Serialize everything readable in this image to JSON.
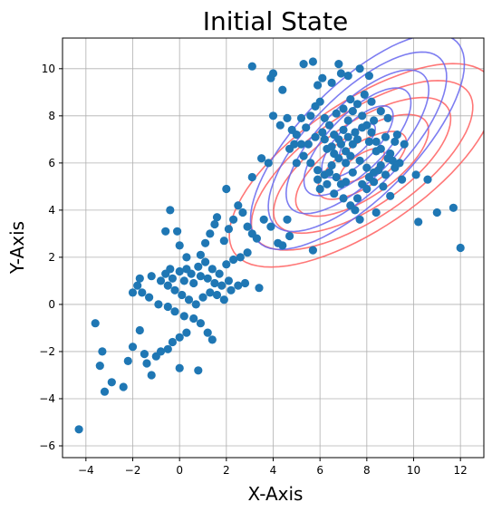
{
  "chart_data": {
    "type": "scatter",
    "title": "Initial State",
    "xlabel": "X-Axis",
    "ylabel": "Y-Axis",
    "xlim": [
      -5.0,
      13.0
    ],
    "ylim": [
      -6.5,
      11.3
    ],
    "xticks": [
      -4,
      -2,
      0,
      2,
      4,
      6,
      8,
      10,
      12
    ],
    "yticks": [
      -6,
      -4,
      -2,
      0,
      2,
      4,
      6,
      8,
      10
    ],
    "grid": true,
    "point_color": "#1f77b4",
    "scatter_points": [
      [
        -4.3,
        -5.3
      ],
      [
        -3.2,
        -3.7
      ],
      [
        -3.4,
        -2.6
      ],
      [
        -2.9,
        -3.3
      ],
      [
        -2.4,
        -3.5
      ],
      [
        -3.6,
        -0.8
      ],
      [
        -3.3,
        -2.0
      ],
      [
        -2.2,
        -2.4
      ],
      [
        -2.0,
        -1.8
      ],
      [
        -1.7,
        -1.1
      ],
      [
        -1.5,
        -2.1
      ],
      [
        -1.2,
        -3.0
      ],
      [
        -1.4,
        -2.5
      ],
      [
        -1.0,
        -2.2
      ],
      [
        -0.8,
        -2.0
      ],
      [
        -0.5,
        -1.9
      ],
      [
        -0.3,
        -1.6
      ],
      [
        0.0,
        -1.4
      ],
      [
        0.3,
        -1.2
      ],
      [
        0.0,
        -2.7
      ],
      [
        0.8,
        -2.8
      ],
      [
        1.4,
        -1.5
      ],
      [
        1.2,
        -1.2
      ],
      [
        0.9,
        -0.8
      ],
      [
        0.6,
        -0.6
      ],
      [
        0.2,
        -0.5
      ],
      [
        -0.2,
        -0.3
      ],
      [
        -0.5,
        -0.1
      ],
      [
        -0.9,
        0.0
      ],
      [
        -1.3,
        0.3
      ],
      [
        -1.6,
        0.5
      ],
      [
        -2.0,
        0.5
      ],
      [
        -1.8,
        0.8
      ],
      [
        -1.7,
        1.1
      ],
      [
        -1.2,
        1.2
      ],
      [
        -0.8,
        1.0
      ],
      [
        -0.5,
        0.8
      ],
      [
        -0.2,
        0.6
      ],
      [
        0.1,
        0.4
      ],
      [
        0.4,
        0.2
      ],
      [
        0.7,
        0.0
      ],
      [
        1.0,
        0.3
      ],
      [
        1.3,
        0.5
      ],
      [
        1.6,
        0.4
      ],
      [
        1.9,
        0.2
      ],
      [
        2.2,
        0.6
      ],
      [
        2.5,
        0.8
      ],
      [
        2.8,
        0.9
      ],
      [
        3.4,
        0.7
      ],
      [
        0.0,
        1.4
      ],
      [
        0.3,
        1.5
      ],
      [
        0.5,
        1.3
      ],
      [
        0.8,
        1.6
      ],
      [
        1.1,
        1.8
      ],
      [
        1.4,
        1.5
      ],
      [
        1.7,
        1.3
      ],
      [
        2.0,
        1.7
      ],
      [
        2.3,
        1.9
      ],
      [
        2.6,
        2.0
      ],
      [
        2.9,
        2.2
      ],
      [
        -0.4,
        1.5
      ],
      [
        -0.6,
        1.3
      ],
      [
        -0.3,
        1.1
      ],
      [
        0.2,
        1.0
      ],
      [
        0.6,
        0.9
      ],
      [
        0.9,
        1.2
      ],
      [
        1.2,
        1.1
      ],
      [
        1.5,
        0.9
      ],
      [
        1.8,
        0.8
      ],
      [
        2.1,
        1.0
      ],
      [
        -0.6,
        3.1
      ],
      [
        -0.4,
        4.0
      ],
      [
        -0.1,
        3.1
      ],
      [
        0.0,
        2.5
      ],
      [
        0.3,
        2.0
      ],
      [
        0.9,
        2.1
      ],
      [
        1.1,
        2.6
      ],
      [
        1.3,
        3.0
      ],
      [
        1.5,
        3.4
      ],
      [
        1.6,
        3.7
      ],
      [
        1.9,
        2.7
      ],
      [
        2.1,
        3.2
      ],
      [
        2.3,
        3.6
      ],
      [
        2.5,
        4.2
      ],
      [
        2.7,
        3.9
      ],
      [
        2.9,
        3.3
      ],
      [
        3.1,
        3.0
      ],
      [
        3.3,
        2.8
      ],
      [
        3.6,
        3.6
      ],
      [
        3.9,
        3.3
      ],
      [
        4.2,
        2.6
      ],
      [
        4.4,
        2.5
      ],
      [
        4.6,
        3.6
      ],
      [
        4.7,
        2.9
      ],
      [
        2.0,
        4.9
      ],
      [
        3.1,
        5.4
      ],
      [
        3.5,
        6.2
      ],
      [
        3.8,
        6.0
      ],
      [
        3.1,
        10.1
      ],
      [
        3.9,
        9.6
      ],
      [
        4.0,
        9.8
      ],
      [
        4.4,
        9.1
      ],
      [
        5.3,
        10.2
      ],
      [
        5.7,
        10.3
      ],
      [
        6.1,
        9.6
      ],
      [
        5.9,
        9.3
      ],
      [
        6.5,
        9.4
      ],
      [
        6.9,
        9.8
      ],
      [
        6.8,
        10.2
      ],
      [
        7.2,
        9.7
      ],
      [
        7.7,
        10.0
      ],
      [
        8.1,
        9.7
      ],
      [
        4.0,
        8.0
      ],
      [
        4.3,
        7.6
      ],
      [
        4.6,
        7.9
      ],
      [
        4.8,
        7.4
      ],
      [
        5.0,
        7.2
      ],
      [
        5.2,
        6.8
      ],
      [
        5.4,
        7.5
      ],
      [
        5.6,
        8.0
      ],
      [
        5.8,
        8.4
      ],
      [
        6.0,
        8.6
      ],
      [
        6.2,
        7.9
      ],
      [
        6.4,
        7.6
      ],
      [
        6.6,
        7.2
      ],
      [
        6.8,
        7.0
      ],
      [
        7.0,
        7.4
      ],
      [
        7.2,
        7.8
      ],
      [
        7.4,
        8.2
      ],
      [
        7.6,
        8.5
      ],
      [
        7.8,
        8.0
      ],
      [
        8.0,
        7.6
      ],
      [
        8.2,
        7.3
      ],
      [
        8.4,
        6.9
      ],
      [
        8.6,
        6.6
      ],
      [
        8.8,
        7.1
      ],
      [
        9.0,
        6.4
      ],
      [
        9.2,
        6.9
      ],
      [
        5.3,
        6.3
      ],
      [
        5.6,
        6.0
      ],
      [
        5.9,
        5.7
      ],
      [
        6.2,
        5.5
      ],
      [
        6.5,
        5.9
      ],
      [
        6.8,
        6.2
      ],
      [
        7.1,
        6.5
      ],
      [
        7.4,
        6.8
      ],
      [
        7.7,
        6.1
      ],
      [
        8.0,
        5.8
      ],
      [
        8.3,
        5.6
      ],
      [
        8.6,
        5.9
      ],
      [
        8.9,
        6.2
      ],
      [
        9.2,
        5.8
      ],
      [
        9.5,
        5.3
      ],
      [
        5.5,
        6.8
      ],
      [
        5.8,
        7.1
      ],
      [
        6.1,
        7.3
      ],
      [
        6.3,
        6.6
      ],
      [
        6.6,
        6.4
      ],
      [
        6.9,
        6.8
      ],
      [
        7.2,
        7.1
      ],
      [
        7.5,
        7.3
      ],
      [
        7.8,
        7.5
      ],
      [
        8.1,
        6.9
      ],
      [
        8.4,
        6.5
      ],
      [
        6.0,
        4.9
      ],
      [
        6.3,
        5.1
      ],
      [
        6.6,
        4.7
      ],
      [
        7.0,
        4.5
      ],
      [
        7.3,
        4.2
      ],
      [
        7.6,
        4.5
      ],
      [
        8.0,
        4.9
      ],
      [
        8.3,
        5.2
      ],
      [
        8.7,
        5.0
      ],
      [
        9.0,
        4.6
      ],
      [
        7.7,
        3.6
      ],
      [
        8.4,
        3.9
      ],
      [
        7.5,
        4.0
      ],
      [
        5.7,
        2.3
      ],
      [
        5.9,
        5.3
      ],
      [
        6.4,
        5.6
      ],
      [
        6.7,
        5.4
      ],
      [
        7.1,
        5.2
      ],
      [
        7.4,
        5.6
      ],
      [
        7.8,
        5.1
      ],
      [
        8.1,
        5.4
      ],
      [
        8.5,
        5.7
      ],
      [
        8.8,
        5.5
      ],
      [
        9.1,
        6.1
      ],
      [
        9.4,
        6.0
      ],
      [
        4.9,
        6.8
      ],
      [
        5.2,
        7.9
      ],
      [
        6.7,
        8.1
      ],
      [
        7.0,
        8.3
      ],
      [
        7.3,
        8.7
      ],
      [
        7.9,
        8.9
      ],
      [
        8.2,
        8.6
      ],
      [
        8.6,
        8.2
      ],
      [
        8.9,
        7.9
      ],
      [
        9.3,
        7.2
      ],
      [
        9.6,
        6.8
      ],
      [
        10.1,
        5.5
      ],
      [
        10.6,
        5.3
      ],
      [
        10.2,
        3.5
      ],
      [
        11.0,
        3.9
      ],
      [
        11.7,
        4.1
      ],
      [
        12.0,
        2.4
      ],
      [
        6.2,
        7.0
      ],
      [
        6.5,
        6.7
      ],
      [
        7.6,
        7.0
      ],
      [
        8.3,
        7.8
      ],
      [
        7.1,
        6.0
      ],
      [
        6.9,
        5.1
      ],
      [
        5.0,
        6.0
      ],
      [
        4.7,
        6.6
      ],
      [
        7.3,
        6.3
      ]
    ],
    "contour_sets": [
      {
        "name": "",
        "color": "#ff5f5f",
        "center": [
          7.8,
          5.9
        ],
        "semi_axes": [
          [
            1.1,
            0.45
          ],
          [
            2.2,
            0.9
          ],
          [
            3.3,
            1.35
          ],
          [
            4.4,
            1.8
          ],
          [
            5.5,
            2.25
          ],
          [
            6.6,
            2.7
          ]
        ],
        "angle_deg": 34
      },
      {
        "name": "",
        "color": "#6666ee",
        "center": [
          7.6,
          6.9
        ],
        "semi_axes": [
          [
            1.0,
            0.4
          ],
          [
            2.0,
            0.8
          ],
          [
            3.0,
            1.2
          ],
          [
            4.0,
            1.6
          ],
          [
            5.0,
            2.0
          ],
          [
            6.0,
            2.4
          ]
        ],
        "angle_deg": 45
      }
    ]
  }
}
